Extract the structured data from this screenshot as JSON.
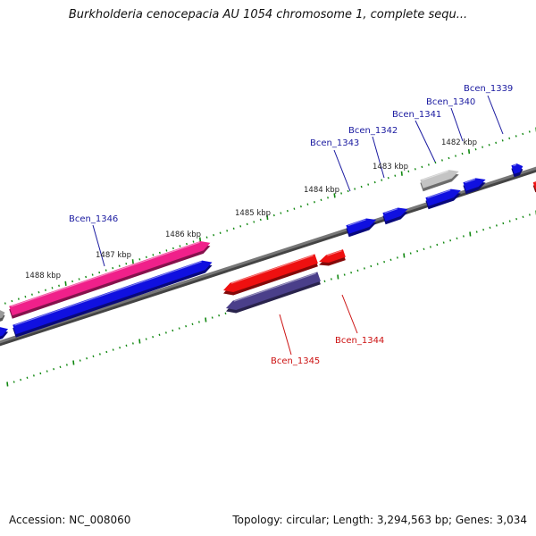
{
  "title": "Burkholderia cenocepacia AU 1054 chromosome 1, complete sequ...",
  "footer": {
    "accession": "Accession: NC_008060",
    "topology": "Topology: circular; Length: 3,294,563 bp; Genes: 3,034"
  },
  "colors": {
    "forward_gene": "#1010e0",
    "reverse_gene": "#ee1010",
    "pink_gene": "#f0208a",
    "purple_gene": "#4a3f8a",
    "gray_gene": "#c4c4c4",
    "backbone": "#777777",
    "tick": "#118811",
    "label_forward": "#1a1aa0",
    "label_reverse": "#cc1111"
  },
  "scale_labels": [
    "1482 kbp",
    "1483 kbp",
    "1484 kbp",
    "1485 kbp",
    "1486 kbp",
    "1487 kbp",
    "1488 kbp"
  ],
  "gene_labels": {
    "forward": [
      "Bcen_1339",
      "Bcen_1340",
      "Bcen_1341",
      "Bcen_1342",
      "Bcen_1343",
      "Bcen_1346"
    ],
    "reverse": [
      "Bcen_1344",
      "Bcen_1345"
    ]
  }
}
